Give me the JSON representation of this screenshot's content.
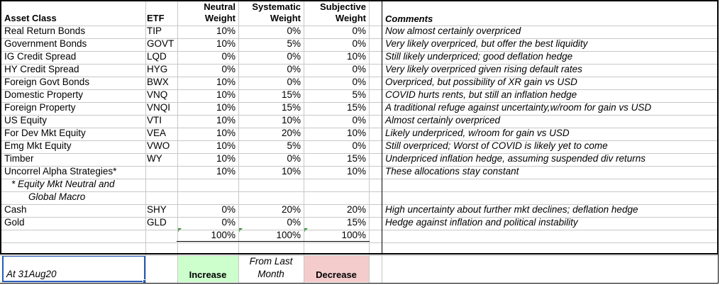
{
  "headers": {
    "asset_class": "Asset Class",
    "etf": "ETF",
    "neutral": [
      "Neutral",
      "Weight"
    ],
    "systematic": [
      "Systematic",
      "Weight"
    ],
    "subjective": [
      "Subjective",
      "Weight"
    ],
    "comments": "Comments"
  },
  "rows": [
    {
      "asset": "Real Return Bonds",
      "etf": "TIP",
      "neutral": "10%",
      "systematic": "0%",
      "subjective": "0%",
      "comment": "Now almost certainly overpriced"
    },
    {
      "asset": "Government Bonds",
      "etf": "GOVT",
      "neutral": "10%",
      "systematic": "5%",
      "subjective": "0%",
      "comment": "Very likely overpriced, but offer the best liquidity"
    },
    {
      "asset": "IG Credit Spread",
      "etf": "LQD",
      "neutral": "0%",
      "systematic": "0%",
      "subjective": "10%",
      "comment": "Still likely underpriced; good deflation hedge"
    },
    {
      "asset": "HY Credit Spread",
      "etf": "HYG",
      "neutral": "0%",
      "systematic": "0%",
      "subjective": "0%",
      "comment": "Very likely overpriced given rising default rates"
    },
    {
      "asset": "Foreign Govt Bonds",
      "etf": "BWX",
      "neutral": "10%",
      "systematic": "0%",
      "subjective": "0%",
      "comment": "Overpriced, but possibility of XR gain vs USD"
    },
    {
      "asset": "Domestic Property",
      "etf": "VNQ",
      "neutral": "10%",
      "systematic": "15%",
      "subjective": "5%",
      "comment": "COVID hurts rents, but still an inflation hedge"
    },
    {
      "asset": "Foreign Property",
      "etf": "VNQI",
      "neutral": "10%",
      "systematic": "15%",
      "subjective": "15%",
      "comment": "A traditional refuge against uncertainty,w/room for gain vs USD"
    },
    {
      "asset": "US Equity",
      "etf": "VTI",
      "neutral": "10%",
      "systematic": "10%",
      "subjective": "0%",
      "comment": "Almost certainly overpriced"
    },
    {
      "asset": "For Dev Mkt Equity",
      "etf": "VEA",
      "neutral": "10%",
      "systematic": "20%",
      "subjective": "10%",
      "comment": "Likely underpriced, w/room for gain vs USD"
    },
    {
      "asset": "Emg Mkt Equity",
      "etf": "VWO",
      "neutral": "10%",
      "systematic": "5%",
      "subjective": "0%",
      "comment": "Still overpriced; Worst of COVID is likely yet to come"
    },
    {
      "asset": "Timber",
      "etf": "WY",
      "neutral": "10%",
      "systematic": "0%",
      "subjective": "15%",
      "comment": "Underpriced inflation hedge, assuming suspended div returns"
    },
    {
      "asset": "Uncorrel Alpha Strategies*",
      "etf": "",
      "neutral": "10%",
      "systematic": "10%",
      "subjective": "10%",
      "comment": "These allocations stay constant"
    },
    {
      "asset": "",
      "etf": "",
      "neutral": "",
      "systematic": "",
      "subjective": "",
      "comment": ""
    },
    {
      "asset": "",
      "etf": "",
      "neutral": "",
      "systematic": "",
      "subjective": "",
      "comment": ""
    },
    {
      "asset": "Cash",
      "etf": "SHY",
      "neutral": "0%",
      "systematic": "20%",
      "subjective": "20%",
      "comment": "High uncertainty about further mkt declines; deflation hedge"
    },
    {
      "asset": "Gold",
      "etf": "GLD",
      "neutral": "0%",
      "systematic": "0%",
      "subjective": "15%",
      "comment": "Hedge against inflation and political instability"
    }
  ],
  "footnote": [
    "* Equity Mkt Neutral and",
    "Global Macro"
  ],
  "totals": {
    "neutral": "100%",
    "systematic": "100%",
    "subjective": "100%"
  },
  "bottom": {
    "date_label": "At 31Aug20",
    "increase": "Increase",
    "from_last": [
      "From Last",
      "Month"
    ],
    "decrease": "Decrease"
  },
  "colors": {
    "increase_fill": "#ccffcc",
    "decrease_fill": "#f4cccc",
    "selection_border": "#2a5cb8",
    "error_triangle": "#2e8b2e"
  }
}
